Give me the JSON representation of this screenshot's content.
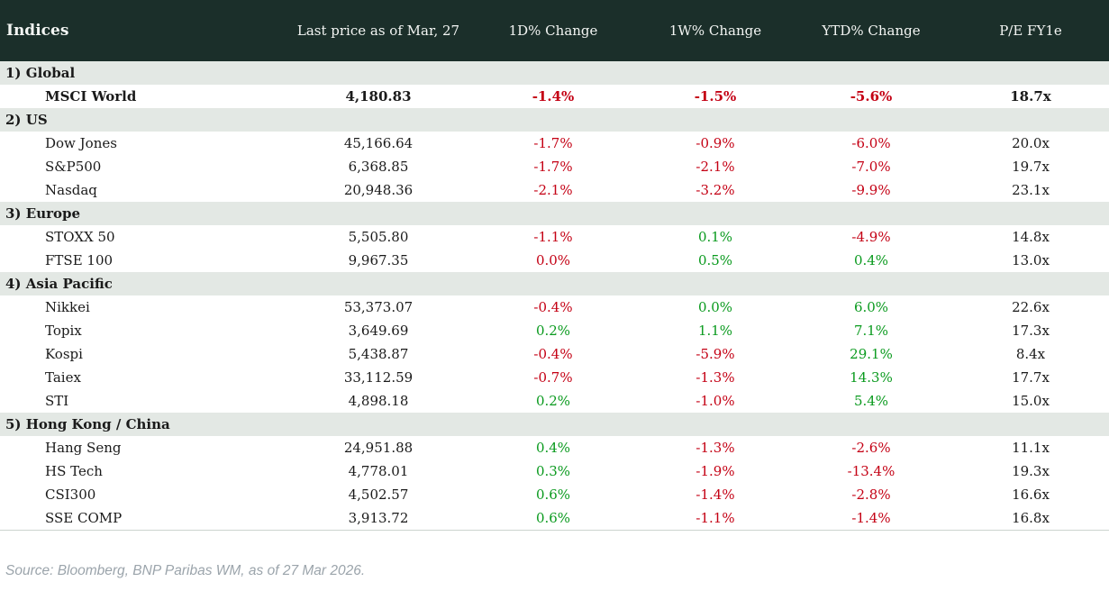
{
  "colors": {
    "header_bg": "#1b2f2a",
    "header_text": "#f3f5f3",
    "section_bg": "#e3e8e4",
    "negative": "#c40014",
    "positive": "#0a9a1e",
    "body_text": "#1a1a1a",
    "source_text": "#9ba4ab"
  },
  "table": {
    "columns": [
      "Indices",
      "Last price as of Mar, 27",
      "1D% Change",
      "1W% Change",
      "YTD% Change",
      "P/E FY1e"
    ],
    "sections": [
      {
        "label": "1) Global",
        "rows": [
          {
            "name": "MSCI World",
            "price": "4,180.83",
            "bold": true,
            "changes": [
              {
                "v": "-1.4%",
                "c": "red"
              },
              {
                "v": "-1.5%",
                "c": "red"
              },
              {
                "v": "-5.6%",
                "c": "red"
              }
            ],
            "pe": "18.7x"
          }
        ]
      },
      {
        "label": "2) US",
        "rows": [
          {
            "name": "Dow Jones",
            "price": "45,166.64",
            "bold": false,
            "changes": [
              {
                "v": "-1.7%",
                "c": "red"
              },
              {
                "v": "-0.9%",
                "c": "red"
              },
              {
                "v": "-6.0%",
                "c": "red"
              }
            ],
            "pe": "20.0x"
          },
          {
            "name": "S&P500",
            "price": "6,368.85",
            "bold": false,
            "changes": [
              {
                "v": "-1.7%",
                "c": "red"
              },
              {
                "v": "-2.1%",
                "c": "red"
              },
              {
                "v": "-7.0%",
                "c": "red"
              }
            ],
            "pe": "19.7x"
          },
          {
            "name": "Nasdaq",
            "price": "20,948.36",
            "bold": false,
            "changes": [
              {
                "v": "-2.1%",
                "c": "red"
              },
              {
                "v": "-3.2%",
                "c": "red"
              },
              {
                "v": "-9.9%",
                "c": "red"
              }
            ],
            "pe": "23.1x"
          }
        ]
      },
      {
        "label": "3) Europe",
        "rows": [
          {
            "name": "STOXX 50",
            "price": "5,505.80",
            "bold": false,
            "changes": [
              {
                "v": "-1.1%",
                "c": "red"
              },
              {
                "v": "0.1%",
                "c": "green"
              },
              {
                "v": "-4.9%",
                "c": "red"
              }
            ],
            "pe": "14.8x"
          },
          {
            "name": "FTSE 100",
            "price": "9,967.35",
            "bold": false,
            "changes": [
              {
                "v": "0.0%",
                "c": "red"
              },
              {
                "v": "0.5%",
                "c": "green"
              },
              {
                "v": "0.4%",
                "c": "green"
              }
            ],
            "pe": "13.0x"
          }
        ]
      },
      {
        "label": "4) Asia Pacific",
        "rows": [
          {
            "name": "Nikkei",
            "price": "53,373.07",
            "bold": false,
            "changes": [
              {
                "v": "-0.4%",
                "c": "red"
              },
              {
                "v": "0.0%",
                "c": "green"
              },
              {
                "v": "6.0%",
                "c": "green"
              }
            ],
            "pe": "22.6x"
          },
          {
            "name": "Topix",
            "price": "3,649.69",
            "bold": false,
            "changes": [
              {
                "v": "0.2%",
                "c": "green"
              },
              {
                "v": "1.1%",
                "c": "green"
              },
              {
                "v": "7.1%",
                "c": "green"
              }
            ],
            "pe": "17.3x"
          },
          {
            "name": "Kospi",
            "price": "5,438.87",
            "bold": false,
            "changes": [
              {
                "v": "-0.4%",
                "c": "red"
              },
              {
                "v": "-5.9%",
                "c": "red"
              },
              {
                "v": "29.1%",
                "c": "green"
              }
            ],
            "pe": "8.4x"
          },
          {
            "name": "Taiex",
            "price": "33,112.59",
            "bold": false,
            "changes": [
              {
                "v": "-0.7%",
                "c": "red"
              },
              {
                "v": "-1.3%",
                "c": "red"
              },
              {
                "v": "14.3%",
                "c": "green"
              }
            ],
            "pe": "17.7x"
          },
          {
            "name": "STI",
            "price": "4,898.18",
            "bold": false,
            "changes": [
              {
                "v": "0.2%",
                "c": "green"
              },
              {
                "v": "-1.0%",
                "c": "red"
              },
              {
                "v": "5.4%",
                "c": "green"
              }
            ],
            "pe": "15.0x"
          }
        ]
      },
      {
        "label": "5) Hong Kong / China",
        "rows": [
          {
            "name": "Hang Seng",
            "price": "24,951.88",
            "bold": false,
            "changes": [
              {
                "v": "0.4%",
                "c": "green"
              },
              {
                "v": "-1.3%",
                "c": "red"
              },
              {
                "v": "-2.6%",
                "c": "red"
              }
            ],
            "pe": "11.1x"
          },
          {
            "name": "HS Tech",
            "price": "4,778.01",
            "bold": false,
            "changes": [
              {
                "v": "0.3%",
                "c": "green"
              },
              {
                "v": "-1.9%",
                "c": "red"
              },
              {
                "v": "-13.4%",
                "c": "red"
              }
            ],
            "pe": "19.3x"
          },
          {
            "name": "CSI300",
            "price": "4,502.57",
            "bold": false,
            "changes": [
              {
                "v": "0.6%",
                "c": "green"
              },
              {
                "v": "-1.4%",
                "c": "red"
              },
              {
                "v": "-2.8%",
                "c": "red"
              }
            ],
            "pe": "16.6x"
          },
          {
            "name": "SSE COMP",
            "price": "3,913.72",
            "bold": false,
            "changes": [
              {
                "v": "0.6%",
                "c": "green"
              },
              {
                "v": "-1.1%",
                "c": "red"
              },
              {
                "v": "-1.4%",
                "c": "red"
              }
            ],
            "pe": "16.8x"
          }
        ]
      }
    ]
  },
  "footer": {
    "source": "Source: Bloomberg, BNP Paribas WM, as of 27 Mar 2026."
  }
}
